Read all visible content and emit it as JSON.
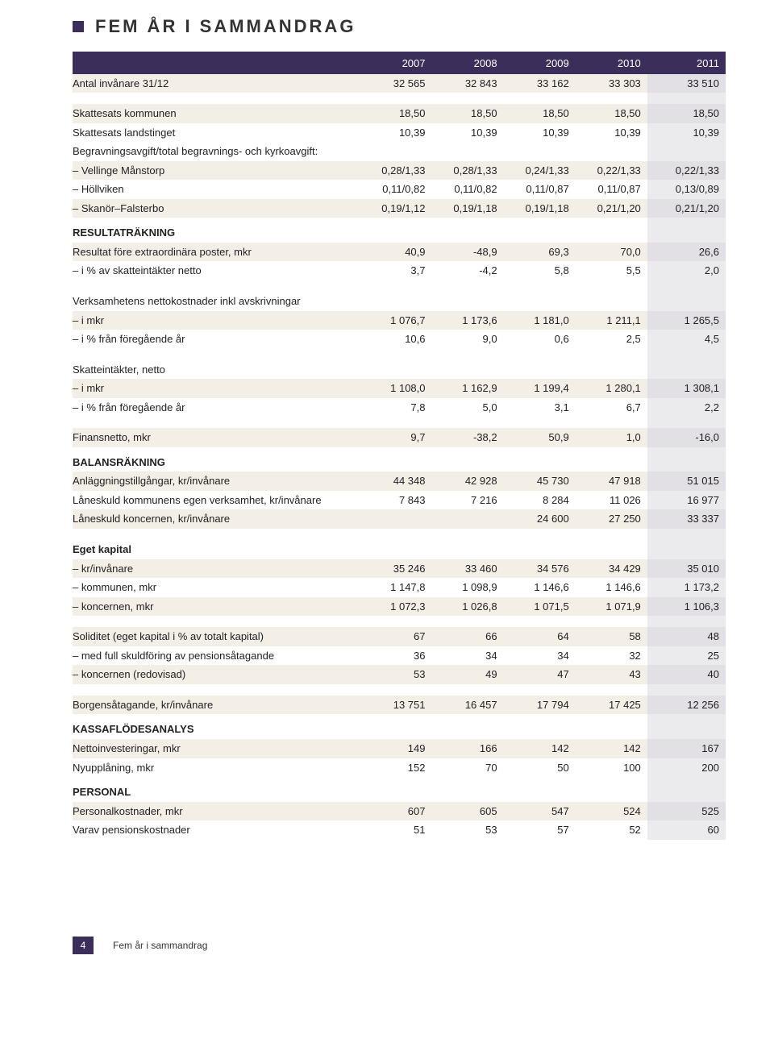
{
  "title": "FEM ÅR I SAMMANDRAG",
  "years": [
    "2007",
    "2008",
    "2009",
    "2010",
    "2011"
  ],
  "rows": [
    {
      "type": "data",
      "shade": true,
      "label": "Antal invånare 31/12",
      "v": [
        "32 565",
        "32 843",
        "33 162",
        "33 303",
        "33 510"
      ]
    },
    {
      "type": "blank"
    },
    {
      "type": "data",
      "shade": true,
      "label": "Skattesats kommunen",
      "v": [
        "18,50",
        "18,50",
        "18,50",
        "18,50",
        "18,50"
      ]
    },
    {
      "type": "data",
      "label": "Skattesats landstinget",
      "v": [
        "10,39",
        "10,39",
        "10,39",
        "10,39",
        "10,39"
      ]
    },
    {
      "type": "data",
      "label": "Begravningsavgift/total begravnings- och kyrkoavgift:",
      "v": [
        "",
        "",
        "",
        "",
        ""
      ]
    },
    {
      "type": "data",
      "shade": true,
      "label": "– Vellinge Månstorp",
      "v": [
        "0,28/1,33",
        "0,28/1,33",
        "0,24/1,33",
        "0,22/1,33",
        "0,22/1,33"
      ]
    },
    {
      "type": "data",
      "label": "– Höllviken",
      "v": [
        "0,11/0,82",
        "0,11/0,82",
        "0,11/0,87",
        "0,11/0,87",
        "0,13/0,89"
      ]
    },
    {
      "type": "data",
      "shade": true,
      "label": "– Skanör–Falsterbo",
      "v": [
        "0,19/1,12",
        "0,19/1,18",
        "0,19/1,18",
        "0,21/1,20",
        "0,21/1,20"
      ]
    },
    {
      "type": "section",
      "label": "RESULTATRÄKNING"
    },
    {
      "type": "data",
      "shade": true,
      "label": "Resultat före extraordinära poster, mkr",
      "v": [
        "40,9",
        "-48,9",
        "69,3",
        "70,0",
        "26,6"
      ]
    },
    {
      "type": "data",
      "label": "– i % av skatteintäkter netto",
      "v": [
        "3,7",
        "-4,2",
        "5,8",
        "5,5",
        "2,0"
      ]
    },
    {
      "type": "blank"
    },
    {
      "type": "data",
      "label": "Verksamhetens nettokostnader inkl avskrivningar",
      "v": [
        "",
        "",
        "",
        "",
        ""
      ]
    },
    {
      "type": "data",
      "shade": true,
      "label": "– i mkr",
      "v": [
        "1 076,7",
        "1 173,6",
        "1 181,0",
        "1 211,1",
        "1 265,5"
      ]
    },
    {
      "type": "data",
      "label": "– i % från föregående år",
      "v": [
        "10,6",
        "9,0",
        "0,6",
        "2,5",
        "4,5"
      ]
    },
    {
      "type": "blank"
    },
    {
      "type": "data",
      "label": "Skatteintäkter, netto",
      "v": [
        "",
        "",
        "",
        "",
        ""
      ]
    },
    {
      "type": "data",
      "shade": true,
      "label": "– i mkr",
      "v": [
        "1 108,0",
        "1 162,9",
        "1 199,4",
        "1 280,1",
        "1 308,1"
      ]
    },
    {
      "type": "data",
      "label": "– i % från föregående år",
      "v": [
        "7,8",
        "5,0",
        "3,1",
        "6,7",
        "2,2"
      ]
    },
    {
      "type": "blank"
    },
    {
      "type": "data",
      "shade": true,
      "label": "Finansnetto, mkr",
      "v": [
        "9,7",
        "-38,2",
        "50,9",
        "1,0",
        "-16,0"
      ]
    },
    {
      "type": "section",
      "label": "BALANSRÄKNING"
    },
    {
      "type": "data",
      "shade": true,
      "label": "Anläggningstillgångar, kr/invånare",
      "v": [
        "44 348",
        "42 928",
        "45 730",
        "47 918",
        "51 015"
      ]
    },
    {
      "type": "data",
      "label": "Låneskuld kommunens egen verksamhet, kr/invånare",
      "v": [
        "7 843",
        "7 216",
        "8 284",
        "11 026",
        "16 977"
      ]
    },
    {
      "type": "data",
      "shade": true,
      "label": "Låneskuld koncernen, kr/invånare",
      "v": [
        "",
        "",
        "24 600",
        "27 250",
        "33 337"
      ]
    },
    {
      "type": "blank"
    },
    {
      "type": "data",
      "label": "Eget kapital",
      "bold": true,
      "v": [
        "",
        "",
        "",
        "",
        ""
      ]
    },
    {
      "type": "data",
      "shade": true,
      "label": "– kr/invånare",
      "v": [
        "35 246",
        "33 460",
        "34 576",
        "34 429",
        "35 010"
      ]
    },
    {
      "type": "data",
      "label": "– kommunen, mkr",
      "v": [
        "1 147,8",
        "1 098,9",
        "1 146,6",
        "1 146,6",
        "1 173,2"
      ]
    },
    {
      "type": "data",
      "shade": true,
      "label": "– koncernen, mkr",
      "v": [
        "1 072,3",
        "1 026,8",
        "1 071,5",
        "1 071,9",
        "1 106,3"
      ]
    },
    {
      "type": "blank"
    },
    {
      "type": "data",
      "shade": true,
      "label": "Soliditet (eget kapital i % av totalt kapital)",
      "v": [
        "67",
        "66",
        "64",
        "58",
        "48"
      ]
    },
    {
      "type": "data",
      "label": "– med full skuldföring av pensionsåtagande",
      "v": [
        "36",
        "34",
        "34",
        "32",
        "25"
      ]
    },
    {
      "type": "data",
      "shade": true,
      "label": "– koncernen (redovisad)",
      "v": [
        "53",
        "49",
        "47",
        "43",
        "40"
      ]
    },
    {
      "type": "blank"
    },
    {
      "type": "data",
      "shade": true,
      "label": "Borgensåtagande, kr/invånare",
      "v": [
        "13 751",
        "16 457",
        "17 794",
        "17 425",
        "12 256"
      ]
    },
    {
      "type": "section",
      "label": "KASSAFLÖDESANALYS"
    },
    {
      "type": "data",
      "shade": true,
      "label": "Nettoinvesteringar, mkr",
      "v": [
        "149",
        "166",
        "142",
        "142",
        "167"
      ]
    },
    {
      "type": "data",
      "label": "Nyupplåning, mkr",
      "v": [
        "152",
        "70",
        "50",
        "100",
        "200"
      ]
    },
    {
      "type": "section",
      "label": "PERSONAL"
    },
    {
      "type": "data",
      "shade": true,
      "label": "Personalkostnader, mkr",
      "v": [
        "607",
        "605",
        "547",
        "524",
        "525"
      ]
    },
    {
      "type": "data",
      "label": "Varav pensionskostnader",
      "v": [
        "51",
        "53",
        "57",
        "52",
        "60"
      ]
    }
  ],
  "footer_page": "4",
  "footer_text": "Fem år i sammandrag"
}
